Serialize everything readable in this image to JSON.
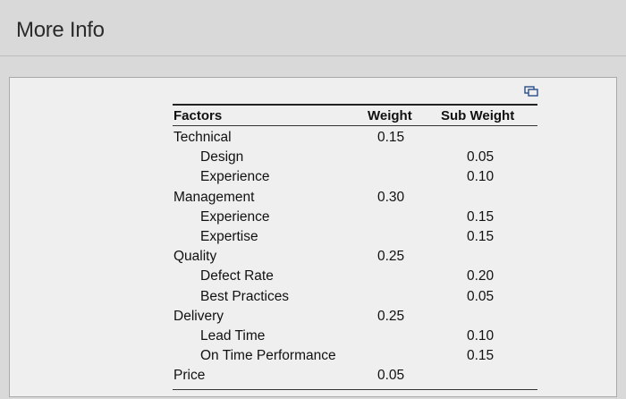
{
  "window": {
    "title": "More Info"
  },
  "table": {
    "headers": {
      "factors": "Factors",
      "weight": "Weight",
      "sub_weight": "Sub Weight"
    },
    "rows": [
      {
        "factor": "Technical",
        "indent": false,
        "weight": "0.15",
        "sub_weight": ""
      },
      {
        "factor": "Design",
        "indent": true,
        "weight": "",
        "sub_weight": "0.05"
      },
      {
        "factor": "Experience",
        "indent": true,
        "weight": "",
        "sub_weight": "0.10"
      },
      {
        "factor": "Management",
        "indent": false,
        "weight": "0.30",
        "sub_weight": ""
      },
      {
        "factor": "Experience",
        "indent": true,
        "weight": "",
        "sub_weight": "0.15"
      },
      {
        "factor": "Expertise",
        "indent": true,
        "weight": "",
        "sub_weight": "0.15"
      },
      {
        "factor": "Quality",
        "indent": false,
        "weight": "0.25",
        "sub_weight": ""
      },
      {
        "factor": "Defect Rate",
        "indent": true,
        "weight": "",
        "sub_weight": "0.20"
      },
      {
        "factor": "Best Practices",
        "indent": true,
        "weight": "",
        "sub_weight": "0.05"
      },
      {
        "factor": "Delivery",
        "indent": false,
        "weight": "0.25",
        "sub_weight": ""
      },
      {
        "factor": "Lead Time",
        "indent": true,
        "weight": "",
        "sub_weight": "0.10"
      },
      {
        "factor": "On Time Performance",
        "indent": true,
        "weight": "",
        "sub_weight": "0.15"
      },
      {
        "factor": "Price",
        "indent": false,
        "weight": "0.05",
        "sub_weight": ""
      }
    ]
  },
  "icons": {
    "copy": "copy-table-icon"
  }
}
